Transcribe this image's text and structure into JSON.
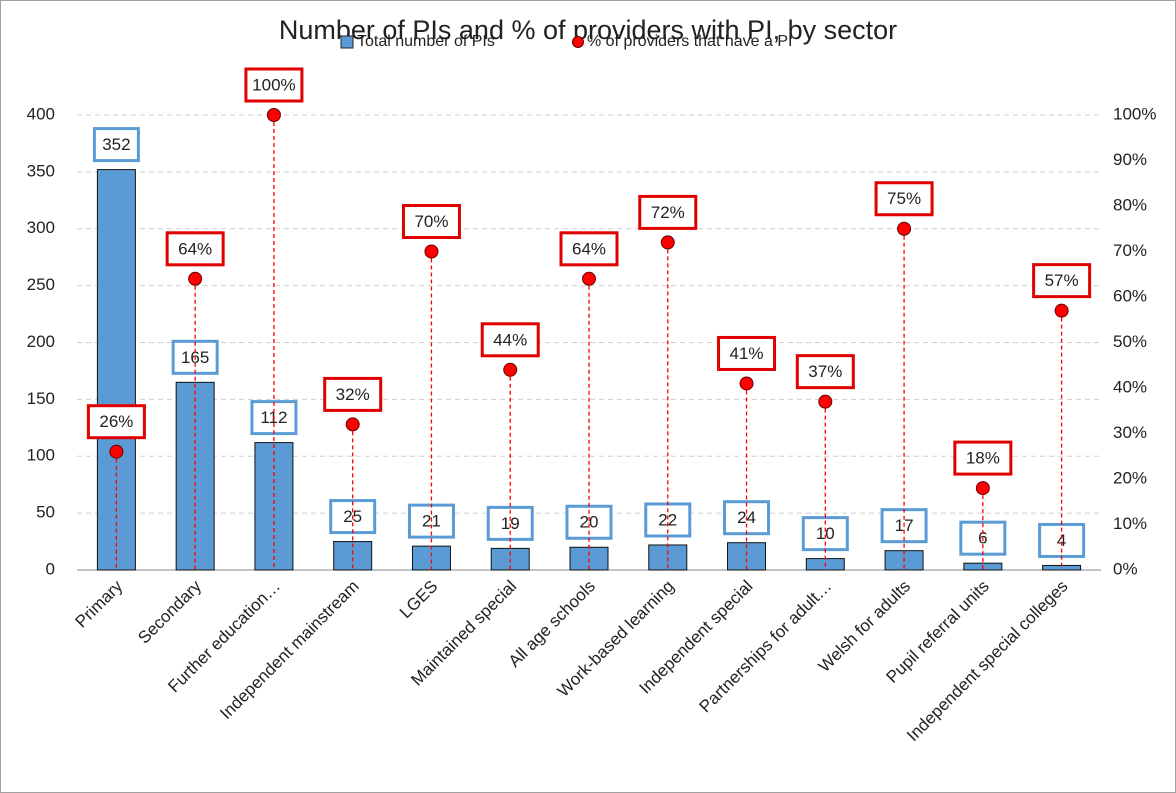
{
  "chart_data": {
    "type": "bar",
    "title": "Number of PIs and % of providers with PI, by sector",
    "categories": [
      "Primary",
      "Secondary",
      "Further education…",
      "Independent mainstream",
      "LGES",
      "Maintained special",
      "All age schools",
      "Work-based learning",
      "Independent special",
      "Partnerships for adult…",
      "Welsh for adults",
      "Pupil referral units",
      "Independent special colleges"
    ],
    "series": [
      {
        "name": "Total number of PIs",
        "type": "bar",
        "color": "#5b9bd5",
        "values": [
          352,
          165,
          112,
          25,
          21,
          19,
          20,
          22,
          24,
          10,
          17,
          6,
          4
        ]
      },
      {
        "name": "% of providers that have a PI",
        "type": "dot",
        "axis": "y2",
        "color": "#ff0000",
        "values": [
          26,
          64,
          100,
          32,
          70,
          44,
          64,
          72,
          41,
          37,
          75,
          18,
          57
        ],
        "value_labels": [
          "26%",
          "64%",
          "100%",
          "32%",
          "70%",
          "44%",
          "64%",
          "72%",
          "41%",
          "37%",
          "75%",
          "18%",
          "57%"
        ]
      }
    ],
    "ylim": [
      0,
      400
    ],
    "yticks": [
      0,
      50,
      100,
      150,
      200,
      250,
      300,
      350,
      400
    ],
    "y2lim": [
      0,
      100
    ],
    "y2ticks": [
      {
        "value": 0,
        "label": "0%"
      },
      {
        "value": 10,
        "label": "10%"
      },
      {
        "value": 20,
        "label": "20%"
      },
      {
        "value": 30,
        "label": "30%"
      },
      {
        "value": 40,
        "label": "40%"
      },
      {
        "value": 50,
        "label": "50%"
      },
      {
        "value": 60,
        "label": "60%"
      },
      {
        "value": 70,
        "label": "70%"
      },
      {
        "value": 80,
        "label": "80%"
      },
      {
        "value": 90,
        "label": "90%"
      },
      {
        "value": 100,
        "label": "100%"
      }
    ],
    "grid": true,
    "legend": "top"
  }
}
